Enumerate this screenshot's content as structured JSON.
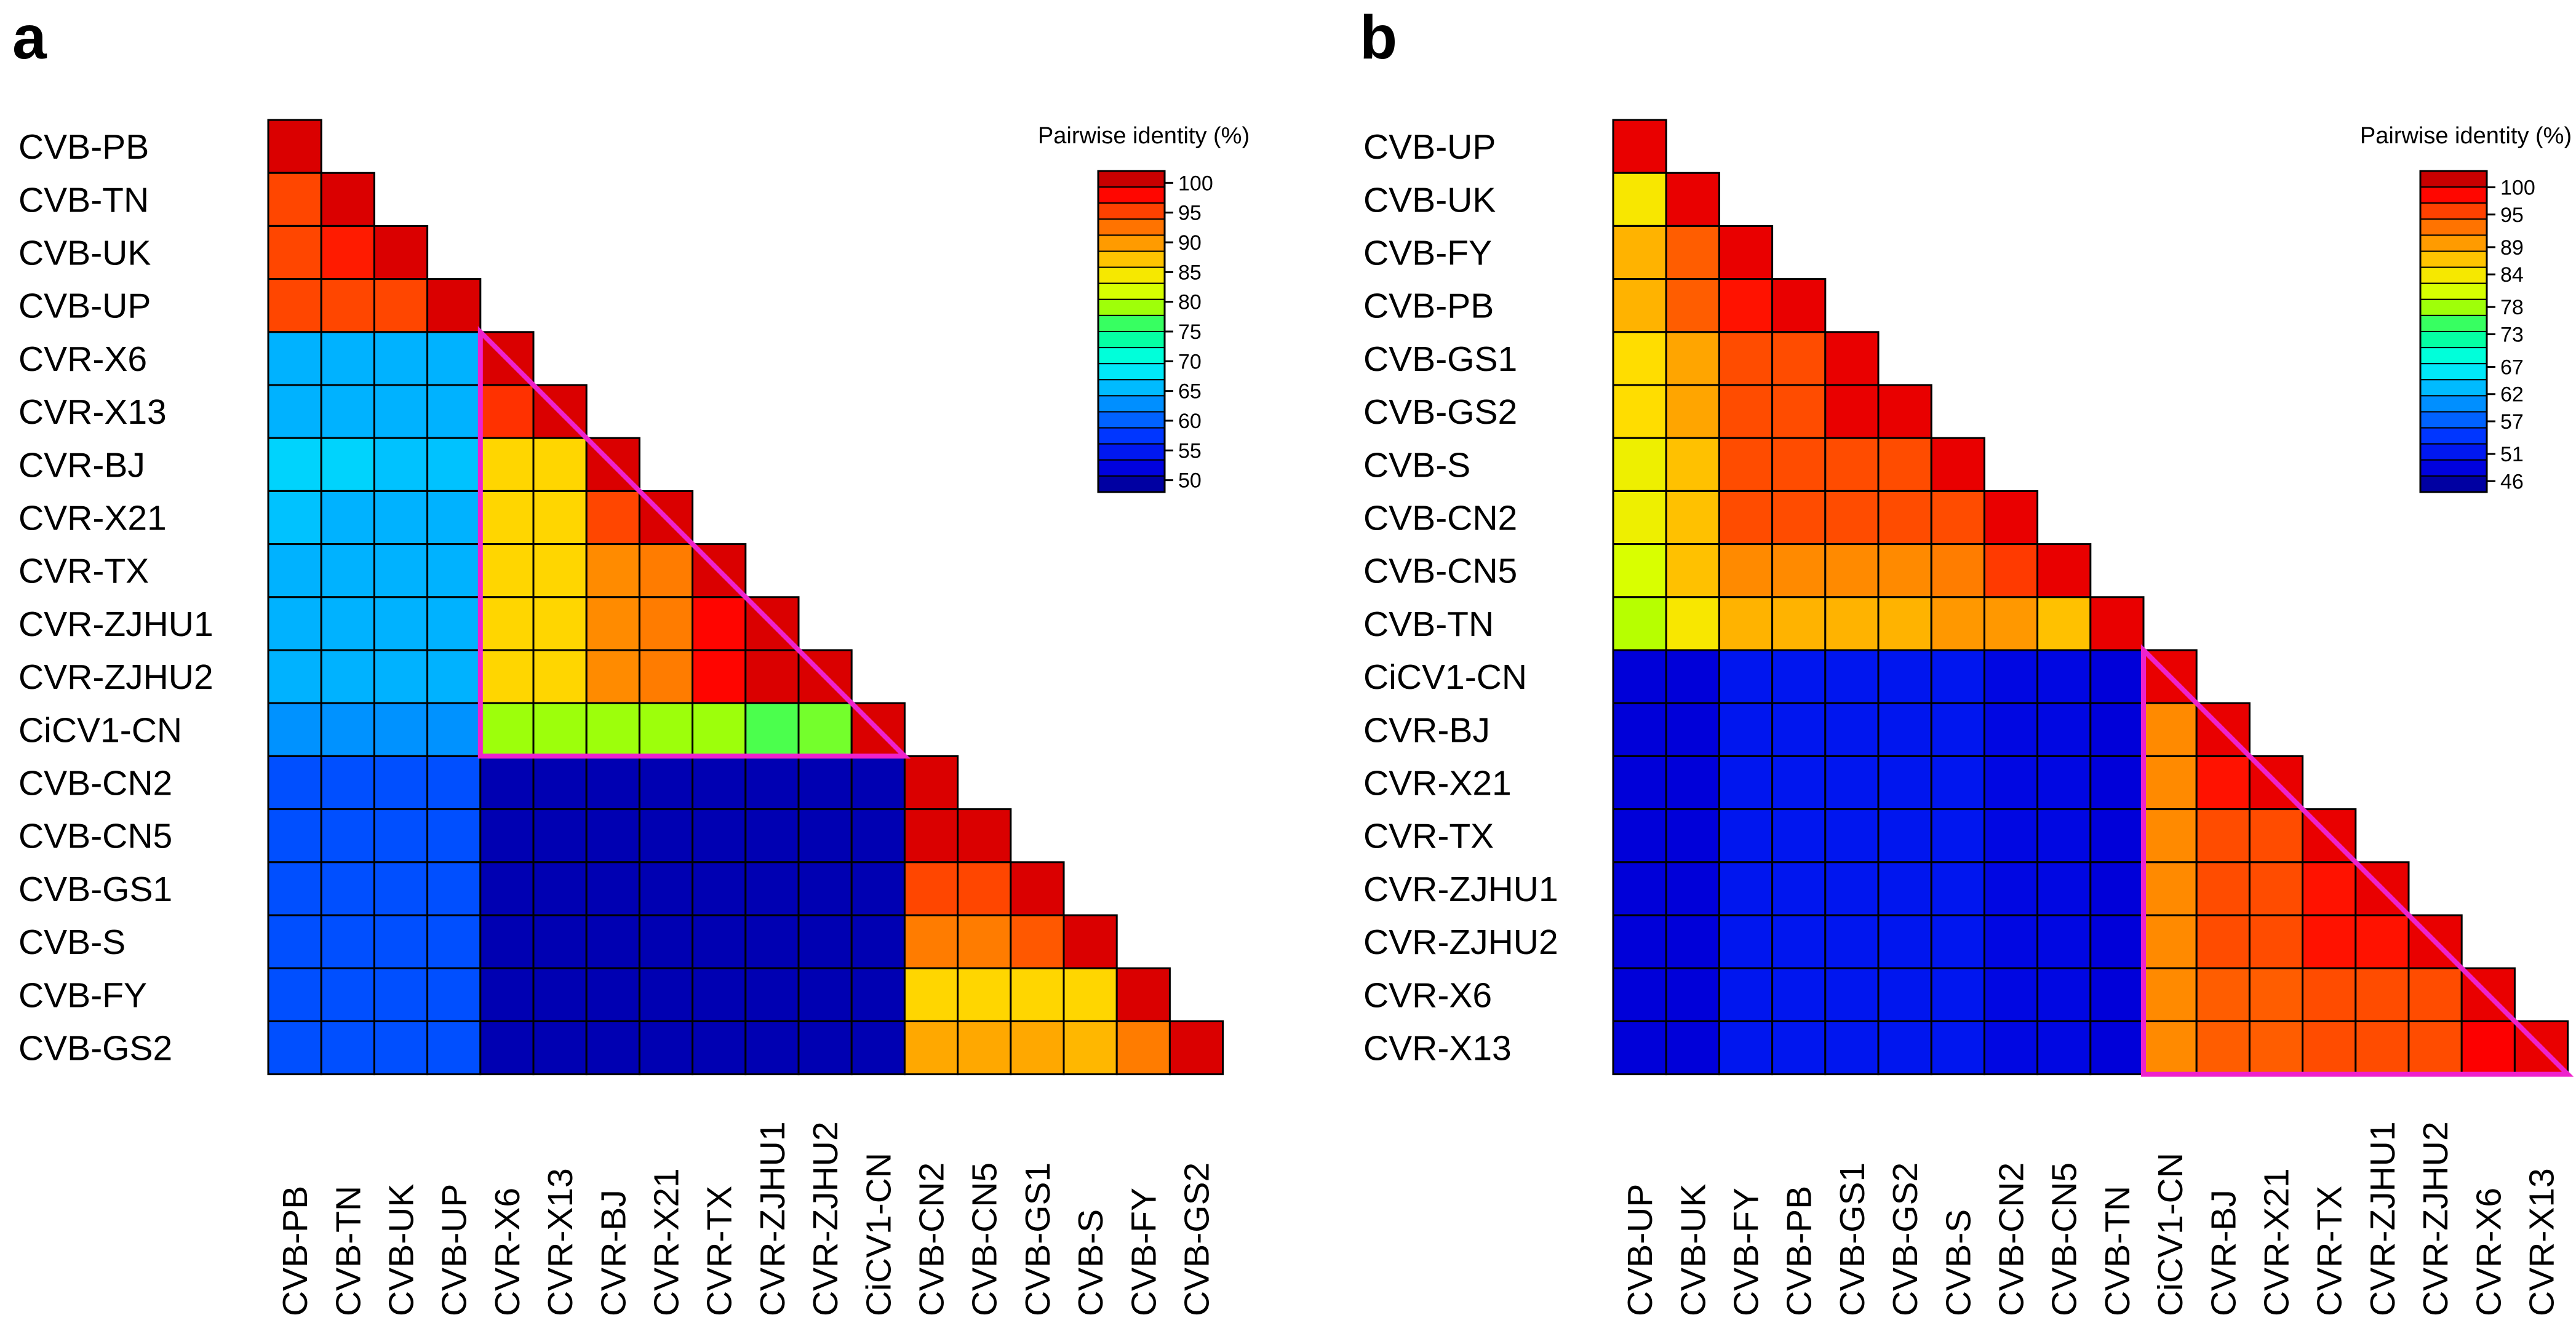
{
  "figure": {
    "panel_labels": [
      "a",
      "b"
    ]
  },
  "chart_data": [
    {
      "type": "heatmap",
      "panel": "a",
      "title": "Pairwise identity (%)",
      "labels": [
        "CVB-PB",
        "CVB-TN",
        "CVB-UK",
        "CVB-UP",
        "CVR-X6",
        "CVR-X13",
        "CVR-BJ",
        "CVR-X21",
        "CVR-TX",
        "CVR-ZJHU1",
        "CVR-ZJHU2",
        "CiCV1-CN",
        "CVB-CN2",
        "CVB-CN5",
        "CVB-GS1",
        "CVB-S",
        "CVB-FY",
        "CVB-GS2"
      ],
      "values": [
        [
          100
        ],
        [
          95,
          100
        ],
        [
          95,
          97,
          100
        ],
        [
          95,
          95,
          95,
          100
        ],
        [
          65,
          65,
          65,
          65,
          100
        ],
        [
          65,
          65,
          65,
          65,
          96,
          100
        ],
        [
          67,
          67,
          66,
          66,
          86,
          86,
          100
        ],
        [
          66,
          65,
          65,
          65,
          86,
          86,
          95,
          100
        ],
        [
          65,
          65,
          65,
          65,
          86,
          86,
          91,
          92,
          100
        ],
        [
          65,
          65,
          65,
          65,
          86,
          86,
          91,
          92,
          98,
          100
        ],
        [
          65,
          65,
          65,
          65,
          86,
          86,
          91,
          92,
          98,
          100,
          100
        ],
        [
          63,
          63,
          63,
          63,
          79,
          79,
          79,
          79,
          79,
          77,
          78,
          100
        ],
        [
          59,
          59,
          59,
          59,
          50,
          50,
          50,
          50,
          50,
          50,
          50,
          50,
          100
        ],
        [
          59,
          59,
          59,
          59,
          50,
          50,
          50,
          50,
          50,
          50,
          50,
          50,
          100,
          100
        ],
        [
          59,
          59,
          59,
          59,
          50,
          50,
          50,
          50,
          50,
          50,
          50,
          50,
          95,
          95,
          100
        ],
        [
          59,
          59,
          59,
          59,
          50,
          50,
          50,
          50,
          50,
          50,
          50,
          50,
          92,
          92,
          94,
          100
        ],
        [
          59,
          59,
          59,
          59,
          50,
          50,
          50,
          50,
          50,
          50,
          50,
          50,
          86,
          86,
          86,
          86,
          100
        ],
        [
          59,
          59,
          59,
          59,
          50,
          50,
          50,
          50,
          50,
          50,
          50,
          50,
          89,
          89,
          89,
          88,
          92,
          100
        ]
      ],
      "colorbar": {
        "ticks": [
          100,
          95,
          90,
          85,
          80,
          75,
          70,
          65,
          60,
          55,
          50
        ],
        "min": 48,
        "max": 102
      },
      "highlight": {
        "rows": [
          4,
          11
        ],
        "cols": [
          4,
          11
        ],
        "color": "#ee22cc"
      }
    },
    {
      "type": "heatmap",
      "panel": "b",
      "title": "Pairwise identity (%)",
      "labels": [
        "CVB-UP",
        "CVB-UK",
        "CVB-FY",
        "CVB-PB",
        "CVB-GS1",
        "CVB-GS2",
        "CVB-S",
        "CVB-CN2",
        "CVB-CN5",
        "CVB-TN",
        "CiCV1-CN",
        "CVR-BJ",
        "CVR-X21",
        "CVR-TX",
        "CVR-ZJHU1",
        "CVR-ZJHU2",
        "CVR-X6",
        "CVR-X13"
      ],
      "values": [
        [
          100
        ],
        [
          84,
          100
        ],
        [
          88,
          94,
          100
        ],
        [
          88,
          94,
          98,
          100
        ],
        [
          85,
          89,
          95,
          95,
          100
        ],
        [
          85,
          89,
          95,
          95,
          100,
          100
        ],
        [
          83,
          87,
          95,
          95,
          95,
          95,
          100
        ],
        [
          83,
          87,
          95,
          95,
          95,
          95,
          95,
          100
        ],
        [
          81,
          87,
          91,
          91,
          91,
          91,
          92,
          96,
          100
        ],
        [
          79,
          84,
          88,
          88,
          88,
          88,
          90,
          90,
          87,
          100
        ],
        [
          48,
          48,
          51,
          51,
          51,
          51,
          51,
          49,
          49,
          48,
          100
        ],
        [
          48,
          48,
          51,
          51,
          51,
          51,
          51,
          49,
          49,
          48,
          91,
          100
        ],
        [
          48,
          48,
          51,
          51,
          51,
          51,
          51,
          49,
          49,
          48,
          91,
          98,
          100
        ],
        [
          48,
          48,
          51,
          51,
          51,
          51,
          51,
          49,
          49,
          48,
          91,
          95,
          95,
          100
        ],
        [
          48,
          48,
          51,
          51,
          51,
          51,
          51,
          49,
          49,
          48,
          91,
          95,
          95,
          98,
          100
        ],
        [
          48,
          48,
          51,
          51,
          51,
          51,
          51,
          49,
          49,
          48,
          91,
          95,
          95,
          98,
          98,
          100
        ],
        [
          48,
          48,
          51,
          51,
          51,
          51,
          51,
          49,
          49,
          48,
          91,
          94,
          94,
          95,
          95,
          95,
          100
        ],
        [
          48,
          48,
          51,
          51,
          51,
          51,
          51,
          49,
          49,
          48,
          91,
          94,
          94,
          95,
          95,
          95,
          99,
          100
        ]
      ],
      "colorbar": {
        "ticks": [
          100,
          95,
          89,
          84,
          78,
          73,
          67,
          62,
          57,
          51,
          46
        ],
        "min": 44,
        "max": 103
      },
      "highlight": {
        "rows": [
          10,
          17
        ],
        "cols": [
          10,
          17
        ],
        "color": "#ee22cc"
      }
    }
  ]
}
